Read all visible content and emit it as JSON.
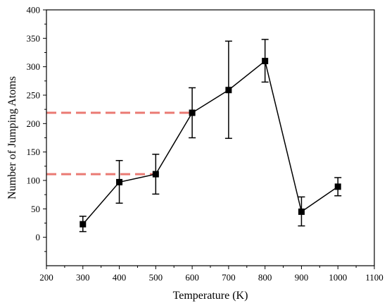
{
  "chart_data": {
    "type": "line",
    "xlabel": "Temperature (K)",
    "ylabel": "Number of Jumping Atoms",
    "xlim": [
      200,
      1100
    ],
    "ylim": [
      -50,
      400
    ],
    "xticks": [
      200,
      300,
      400,
      500,
      600,
      700,
      800,
      900,
      1000,
      1100
    ],
    "yticks": [
      0,
      50,
      100,
      150,
      200,
      250,
      300,
      350,
      400
    ],
    "grid": false,
    "series": [
      {
        "x": [
          300,
          400,
          500,
          600,
          700,
          800,
          900,
          1000
        ],
        "y": [
          23,
          97,
          111,
          219,
          259,
          310,
          45,
          89
        ],
        "error_low": [
          10,
          60,
          76,
          175,
          174,
          273,
          20,
          73
        ],
        "error_high": [
          37,
          135,
          146,
          263,
          345,
          348,
          71,
          105
        ],
        "color": "#000000",
        "marker": "square"
      }
    ],
    "reference_lines": [
      {
        "style": "dashed",
        "color": "#ea7a73",
        "y": 111,
        "x_from": 200,
        "x_to": 500
      },
      {
        "style": "dashed",
        "color": "#ea7a73",
        "y": 219,
        "x_from": 200,
        "x_to": 600
      }
    ]
  }
}
